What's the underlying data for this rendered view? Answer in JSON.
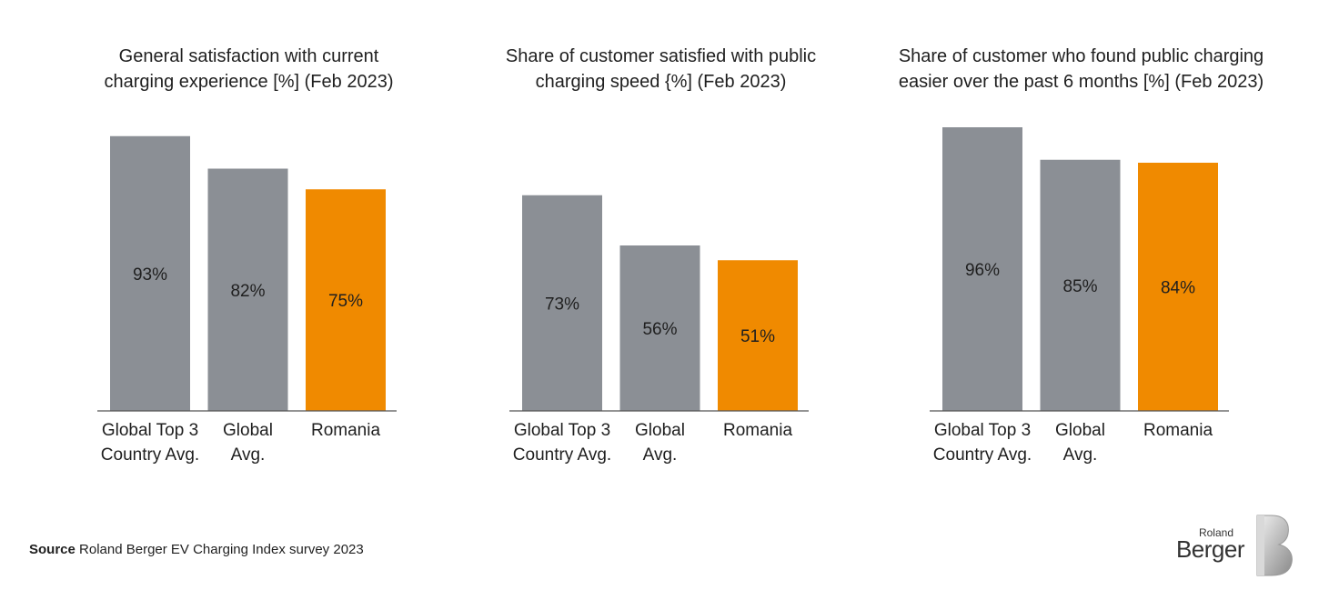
{
  "chart_data": [
    {
      "type": "bar",
      "title_lines": [
        "General satisfaction with current",
        "charging experience [%] (Feb 2023)"
      ],
      "categories": [
        [
          "Global Top 3",
          "Country Avg."
        ],
        [
          "Global",
          "Avg."
        ],
        [
          "Romania"
        ]
      ],
      "values": [
        93,
        82,
        75
      ],
      "value_labels": [
        "93%",
        "82%",
        "75%"
      ],
      "colors": [
        "#8b8f95",
        "#8b8f95",
        "#f08a00"
      ],
      "ylim": [
        0,
        100
      ]
    },
    {
      "type": "bar",
      "title_lines": [
        "Share of customer satisfied with public",
        "charging speed {%] (Feb 2023)"
      ],
      "categories": [
        [
          "Global Top 3",
          "Country Avg."
        ],
        [
          "Global",
          "Avg."
        ],
        [
          "Romania"
        ]
      ],
      "values": [
        73,
        56,
        51
      ],
      "value_labels": [
        "73%",
        "56%",
        "51%"
      ],
      "colors": [
        "#8b8f95",
        "#8b8f95",
        "#f08a00"
      ],
      "ylim": [
        0,
        100
      ]
    },
    {
      "type": "bar",
      "title_lines": [
        "Share of customer who found public charging",
        "easier over the past 6 months [%] (Feb 2023)"
      ],
      "categories": [
        [
          "Global Top 3",
          "Country Avg."
        ],
        [
          "Global",
          "Avg."
        ],
        [
          "Romania"
        ]
      ],
      "values": [
        96,
        85,
        84
      ],
      "value_labels": [
        "96%",
        "85%",
        "84%"
      ],
      "colors": [
        "#8b8f95",
        "#8b8f95",
        "#f08a00"
      ],
      "ylim": [
        0,
        100
      ]
    }
  ],
  "source": {
    "label": "Source",
    "text": "Roland Berger EV Charging Index survey 2023"
  },
  "logo": {
    "small": "Roland",
    "big": "Berger"
  }
}
